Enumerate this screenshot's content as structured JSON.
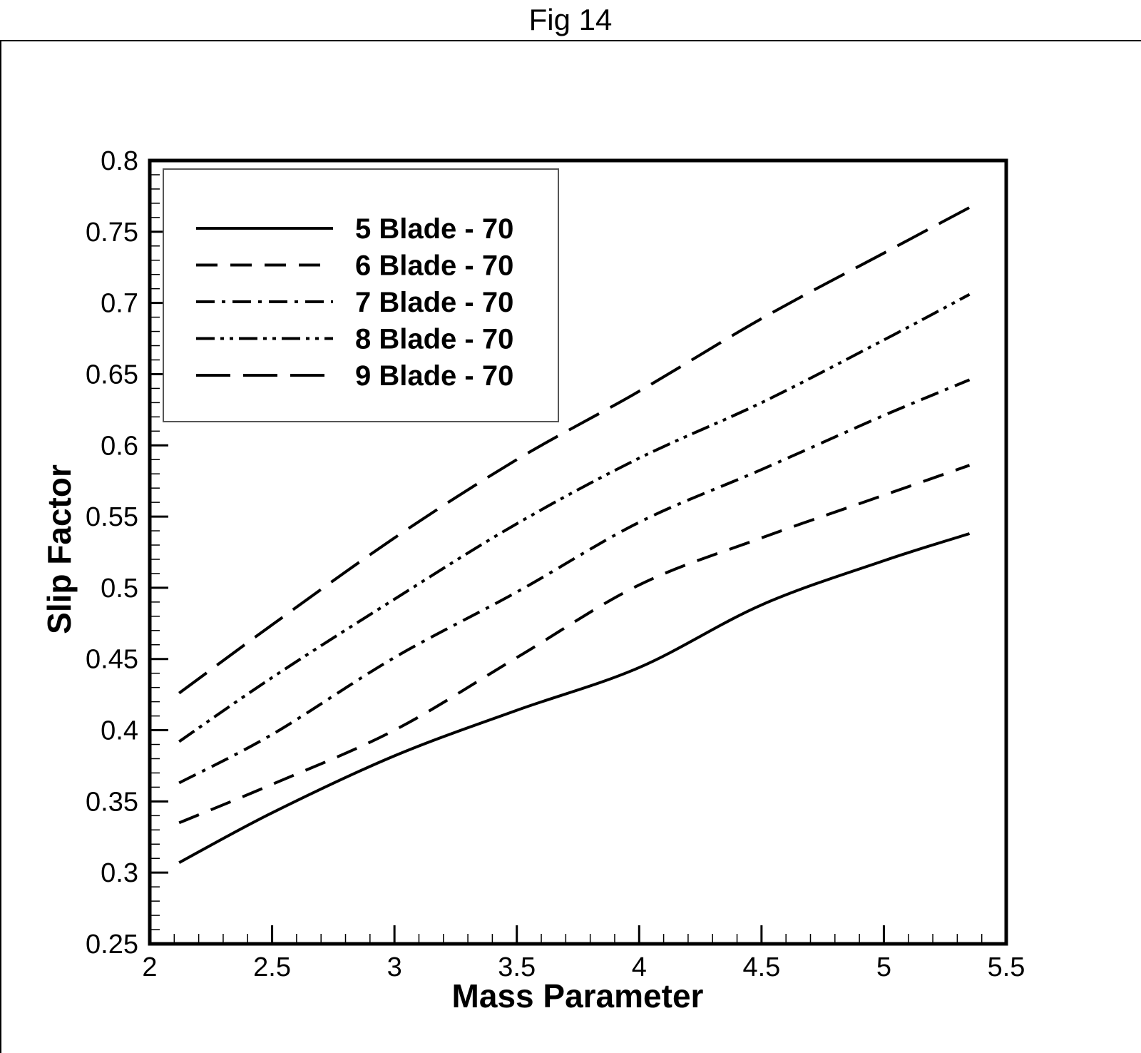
{
  "figure": {
    "title": "Fig 14"
  },
  "chart_data": {
    "type": "line",
    "title": "",
    "xlabel": "Mass Parameter",
    "ylabel": "Slip Factor",
    "xlim": [
      2,
      5.5
    ],
    "ylim": [
      0.25,
      0.8
    ],
    "xticks": [
      "2",
      "2.5",
      "3",
      "3.5",
      "4",
      "4.5",
      "5",
      "5.5"
    ],
    "yticks": [
      "0.25",
      "0.3",
      "0.35",
      "0.4",
      "0.45",
      "0.5",
      "0.55",
      "0.6",
      "0.65",
      "0.7",
      "0.75",
      "0.8"
    ],
    "grid": false,
    "legend_position": "top-left",
    "x": [
      2.12,
      2.5,
      3.0,
      3.5,
      4.0,
      4.5,
      5.0,
      5.35
    ],
    "series": [
      {
        "name": "5 Blade - 70",
        "dash": "solid",
        "values": [
          0.307,
          0.342,
          0.382,
          0.414,
          0.444,
          0.488,
          0.519,
          0.538
        ]
      },
      {
        "name": "6 Blade - 70",
        "dash": "dash",
        "values": [
          0.335,
          0.362,
          0.4,
          0.451,
          0.502,
          0.535,
          0.565,
          0.586
        ]
      },
      {
        "name": "7 Blade - 70",
        "dash": "dashdot",
        "values": [
          0.363,
          0.397,
          0.451,
          0.497,
          0.546,
          0.583,
          0.621,
          0.646
        ]
      },
      {
        "name": "8 Blade - 70",
        "dash": "dashdotdot",
        "values": [
          0.392,
          0.437,
          0.492,
          0.545,
          0.591,
          0.63,
          0.674,
          0.706
        ]
      },
      {
        "name": "9 Blade - 70",
        "dash": "longdash",
        "values": [
          0.426,
          0.474,
          0.535,
          0.59,
          0.638,
          0.689,
          0.735,
          0.767
        ]
      }
    ]
  }
}
